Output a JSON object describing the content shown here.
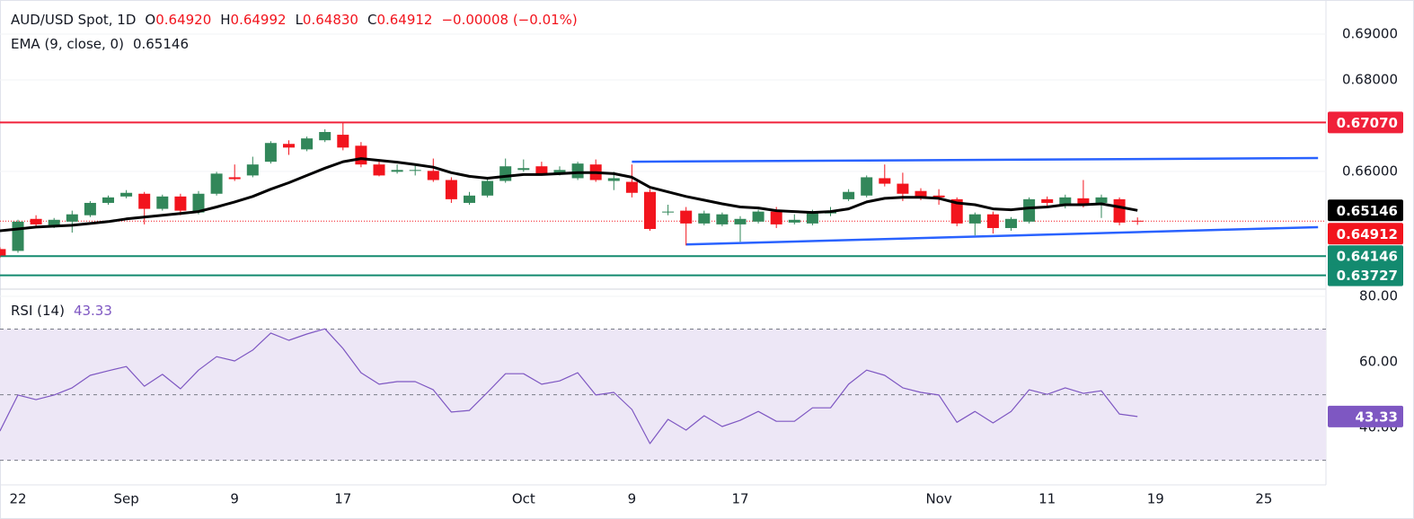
{
  "chart_data": [
    {
      "type": "candlestick",
      "title": "AUD/USD Spot, 1D",
      "ohlc": [
        {
          "key": "O",
          "value": "0.64920"
        },
        {
          "key": "H",
          "value": "0.64992"
        },
        {
          "key": "L",
          "value": "0.64830"
        },
        {
          "key": "C",
          "value": "0.64912"
        }
      ],
      "change": "−0.00008 (−0.01%)",
      "categories": [
        null,
        "22",
        null,
        null,
        null,
        null,
        null,
        "Sep",
        null,
        null,
        null,
        null,
        null,
        "9",
        null,
        null,
        null,
        null,
        null,
        "17",
        null,
        null,
        null,
        null,
        null,
        null,
        null,
        null,
        null,
        "Oct",
        null,
        null,
        null,
        null,
        null,
        "9",
        null,
        null,
        null,
        null,
        null,
        "17",
        null,
        null,
        null,
        null,
        null,
        null,
        null,
        null,
        null,
        null,
        "Nov",
        null,
        null,
        null,
        null,
        null,
        "11",
        null,
        null,
        null,
        null,
        null,
        "19",
        null,
        null,
        null,
        null,
        null,
        "25",
        null
      ],
      "open": [
        0.643,
        0.6426,
        0.6496,
        0.6482,
        0.649,
        0.6504,
        0.6531,
        0.6545,
        0.6551,
        0.6518,
        0.6545,
        0.651,
        0.6551,
        0.6587,
        0.6591,
        0.6621,
        0.666,
        0.6648,
        0.6668,
        0.668,
        0.6656,
        0.6615,
        0.6599,
        0.6601,
        0.6601,
        0.6581,
        0.6531,
        0.6547,
        0.6579,
        0.6603,
        0.6611,
        0.6595,
        0.6585,
        0.6615,
        0.6579,
        0.6577,
        0.6555,
        0.651,
        0.6514,
        0.6486,
        0.6484,
        0.6484,
        0.649,
        0.6512,
        0.6488,
        0.6486,
        0.6508,
        0.6539,
        0.6547,
        0.6585,
        0.6573,
        0.6557,
        0.6547,
        0.6539,
        0.6486,
        0.6506,
        0.6476,
        0.649,
        0.6539,
        0.6527,
        0.6541,
        0.6531,
        0.6539,
        0.6492,
        null,
        null,
        null,
        null,
        null,
        null,
        null,
        null
      ],
      "high": [
        0.6434,
        0.6494,
        0.6504,
        0.6498,
        0.6514,
        0.6535,
        0.6547,
        0.6559,
        0.6555,
        0.6549,
        0.6551,
        0.6557,
        0.6599,
        0.6615,
        0.6632,
        0.6666,
        0.6668,
        0.6676,
        0.6692,
        0.6706,
        0.6664,
        0.6621,
        0.6615,
        0.6615,
        0.6628,
        0.6587,
        0.6555,
        0.6583,
        0.6628,
        0.6626,
        0.6621,
        0.6611,
        0.6621,
        0.6626,
        0.6599,
        0.6615,
        0.6561,
        0.6527,
        0.6522,
        0.6514,
        0.651,
        0.6502,
        0.6516,
        0.6522,
        0.6506,
        0.6516,
        0.6522,
        0.6561,
        0.6591,
        0.6615,
        0.6597,
        0.6563,
        0.6561,
        0.6543,
        0.651,
        0.6512,
        0.65,
        0.6543,
        0.6545,
        0.6549,
        0.6581,
        0.6549,
        0.6543,
        0.64992,
        null,
        null,
        null,
        null,
        null,
        null,
        null,
        null
      ],
      "low": [
        0.6411,
        0.6422,
        0.6478,
        0.6476,
        0.6466,
        0.65,
        0.6527,
        0.6541,
        0.6484,
        0.6514,
        0.6504,
        0.6506,
        0.6547,
        0.6579,
        0.6587,
        0.6617,
        0.6636,
        0.6644,
        0.6664,
        0.6646,
        0.6609,
        0.6589,
        0.6595,
        0.6591,
        0.6577,
        0.6531,
        0.6527,
        0.6543,
        0.6575,
        0.6599,
        0.6591,
        0.6591,
        0.6581,
        0.6577,
        0.6559,
        0.6543,
        0.647,
        0.6504,
        0.6438,
        0.6482,
        0.648,
        0.6446,
        0.6486,
        0.6476,
        0.6484,
        0.6482,
        0.6502,
        0.6535,
        0.6543,
        0.6567,
        0.6535,
        0.6537,
        0.6527,
        0.648,
        0.646,
        0.6464,
        0.647,
        0.6486,
        0.6523,
        0.6519,
        0.6521,
        0.6498,
        0.6482,
        0.6483,
        null,
        null,
        null,
        null,
        null,
        null,
        null,
        null
      ],
      "close": [
        0.6416,
        0.649,
        0.6484,
        0.6494,
        0.6506,
        0.6531,
        0.6543,
        0.6553,
        0.6518,
        0.6545,
        0.6514,
        0.6551,
        0.6595,
        0.6583,
        0.6615,
        0.6662,
        0.6652,
        0.6672,
        0.6686,
        0.6652,
        0.6615,
        0.6591,
        0.6603,
        0.6603,
        0.6581,
        0.6539,
        0.6547,
        0.6579,
        0.6611,
        0.6607,
        0.6595,
        0.6603,
        0.6617,
        0.6581,
        0.6585,
        0.6553,
        0.6474,
        0.6512,
        0.6486,
        0.6508,
        0.6506,
        0.6496,
        0.6512,
        0.6484,
        0.6494,
        0.6512,
        0.6512,
        0.6555,
        0.6587,
        0.6573,
        0.6551,
        0.6543,
        0.6543,
        0.6486,
        0.6506,
        0.6476,
        0.6496,
        0.6539,
        0.6531,
        0.6543,
        0.6527,
        0.6543,
        0.6488,
        0.64912,
        null,
        null,
        null,
        null,
        null,
        null,
        null,
        null
      ],
      "up_color": "#32875a",
      "down_color": "#f2141d",
      "series": [
        {
          "name": "EMA (9, close, 0)",
          "color": "#000000",
          "values": [
            0.647,
            0.6474,
            0.6478,
            0.648,
            0.6482,
            0.6486,
            0.649,
            0.6496,
            0.65,
            0.6504,
            0.6508,
            0.6512,
            0.6522,
            0.6533,
            0.6545,
            0.6561,
            0.6575,
            0.6591,
            0.6607,
            0.6621,
            0.6628,
            0.6624,
            0.662,
            0.6615,
            0.6609,
            0.6597,
            0.6589,
            0.6585,
            0.6589,
            0.6593,
            0.6593,
            0.6595,
            0.6597,
            0.6597,
            0.6595,
            0.6587,
            0.6565,
            0.6555,
            0.6545,
            0.6537,
            0.6529,
            0.6522,
            0.652,
            0.6514,
            0.6512,
            0.651,
            0.6512,
            0.6518,
            0.6533,
            0.6541,
            0.6543,
            0.6543,
            0.6541,
            0.6531,
            0.6527,
            0.6518,
            0.6516,
            0.652,
            0.6522,
            0.6527,
            0.6527,
            0.6529,
            0.6522,
            0.65146,
            null,
            null,
            null,
            null,
            null,
            null,
            null,
            null
          ]
        }
      ],
      "ema_last": {
        "value": 0.65146,
        "label": "0.65146"
      },
      "last_price": {
        "value": 0.64912,
        "label": "0.64912",
        "color": "#f2141d"
      },
      "levels": [
        {
          "value": 0.6707,
          "label": "0.67070",
          "color": "#f0213a"
        },
        {
          "value": 0.64146,
          "label": "0.64146",
          "color": "#138a6f"
        },
        {
          "value": 0.63727,
          "label": "0.63727",
          "color": "#138a6f"
        }
      ],
      "trendlines": [
        {
          "color": "#2962ff",
          "x": [
            35,
            73
          ],
          "y": [
            0.6621,
            0.6629
          ]
        },
        {
          "color": "#2962ff",
          "x": [
            38,
            73
          ],
          "y": [
            0.644,
            0.6478
          ]
        }
      ],
      "ylim": [
        0.63424,
        0.69747
      ],
      "yticks": [
        {
          "value": 0.66,
          "label": "0.66000"
        },
        {
          "value": 0.68,
          "label": "0.68000"
        },
        {
          "value": 0.69,
          "label": "0.69000"
        }
      ]
    },
    {
      "type": "line",
      "title": "RSI (14)",
      "series": [
        {
          "name": "RSI (14)",
          "color": "#7e57c2",
          "values": [
            38.9,
            49.9,
            48.5,
            49.9,
            52.1,
            55.9,
            57.3,
            58.6,
            52.6,
            56.2,
            51.8,
            57.5,
            61.6,
            60.3,
            63.6,
            68.8,
            66.6,
            68.5,
            70.1,
            64.1,
            56.7,
            53.2,
            54.0,
            54.0,
            51.5,
            44.7,
            45.2,
            50.7,
            56.4,
            56.4,
            53.2,
            54.2,
            56.7,
            49.9,
            50.7,
            45.5,
            35.1,
            42.5,
            39.2,
            43.6,
            40.3,
            42.2,
            44.9,
            41.9,
            41.9,
            46.0,
            46.0,
            53.2,
            57.5,
            55.9,
            52.1,
            50.7,
            49.9,
            41.6,
            44.9,
            41.4,
            44.9,
            51.5,
            50.1,
            52.1,
            50.4,
            51.2,
            44.1,
            43.33,
            null,
            null,
            null,
            null,
            null,
            null,
            null,
            null
          ]
        }
      ],
      "last": {
        "value": 43.33,
        "label": "43.33"
      },
      "bands": {
        "lower": 30,
        "upper": 70,
        "middle": 50,
        "fill": "#ede7f6"
      },
      "ylim": [
        22.5,
        82.2
      ],
      "yticks": [
        {
          "value": 40,
          "label": "40.00"
        },
        {
          "value": 60,
          "label": "60.00"
        },
        {
          "value": 80,
          "label": "80.00"
        }
      ]
    }
  ]
}
